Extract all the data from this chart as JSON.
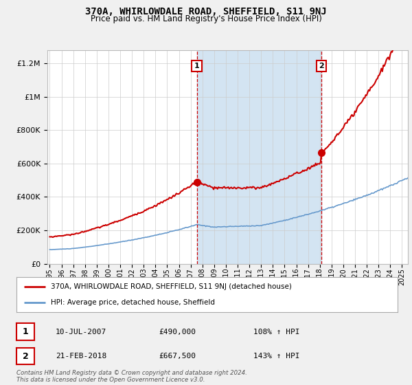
{
  "title": "370A, WHIRLOWDALE ROAD, SHEFFIELD, S11 9NJ",
  "subtitle": "Price paid vs. HM Land Registry's House Price Index (HPI)",
  "ylim": [
    0,
    1200000
  ],
  "xlim_start": 1994.8,
  "xlim_end": 2025.5,
  "point1_x": 2007.53,
  "point1_y": 490000,
  "point2_x": 2018.13,
  "point2_y": 667500,
  "shade_x1": 2007.53,
  "shade_x2": 2018.13,
  "legend_line1": "370A, WHIRLOWDALE ROAD, SHEFFIELD, S11 9NJ (detached house)",
  "legend_line2": "HPI: Average price, detached house, Sheffield",
  "point1_date": "10-JUL-2007",
  "point1_price": "£490,000",
  "point1_hpi": "108% ↑ HPI",
  "point2_date": "21-FEB-2018",
  "point2_price": "£667,500",
  "point2_hpi": "143% ↑ HPI",
  "footer": "Contains HM Land Registry data © Crown copyright and database right 2024.\nThis data is licensed under the Open Government Licence v3.0.",
  "line_color_red": "#cc0000",
  "line_color_blue": "#6699cc",
  "shade_color": "#cce0f0",
  "bg_color": "#f0f0f0",
  "plot_bg_color": "#ffffff"
}
